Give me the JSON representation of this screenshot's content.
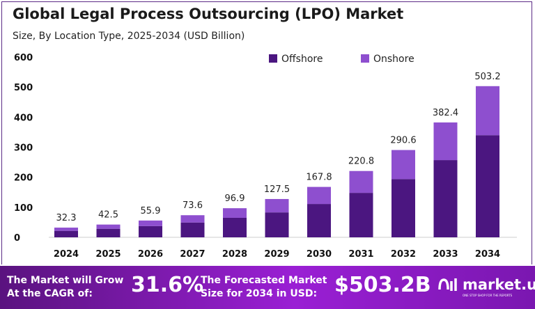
{
  "chart_data": {
    "type": "bar",
    "stacked": true,
    "title": "Global Legal Process Outsourcing (LPO) Market",
    "subtitle": "Size, By Location Type, 2025-2034 (USD Billion)",
    "categories": [
      "2024",
      "2025",
      "2026",
      "2027",
      "2028",
      "2029",
      "2030",
      "2031",
      "2032",
      "2033",
      "2034"
    ],
    "series": [
      {
        "name": "Offshore",
        "color": "#4b1680",
        "values": [
          21.6,
          28.5,
          37.5,
          49.3,
          64.9,
          83,
          111,
          148,
          194,
          257,
          340
        ]
      },
      {
        "name": "Onshore",
        "color": "#8e4fcf",
        "values": [
          10.7,
          14.0,
          18.4,
          24.3,
          32.0,
          44.5,
          56.8,
          72.8,
          96.6,
          125.4,
          163.2
        ]
      }
    ],
    "totals": [
      "32.3",
      "42.5",
      "55.9",
      "73.6",
      "96.9",
      "127.5",
      "167.8",
      "220.8",
      "290.6",
      "382.4",
      "503.2"
    ],
    "ylim": [
      0,
      600
    ],
    "yticks": [
      "0",
      "100",
      "200",
      "300",
      "400",
      "500",
      "600"
    ],
    "grid": false,
    "legend_position": "top-right"
  },
  "footer": {
    "cagr_text": "The Market will Grow At the CAGR of:",
    "cagr_value": "31.6%",
    "forecast_text": "The Forecasted Market Size for 2034 in USD:",
    "forecast_value": "$503.2B",
    "logo_text": "market.us",
    "logo_tagline": "ONE STOP SHOP FOR THE REPORTS"
  }
}
